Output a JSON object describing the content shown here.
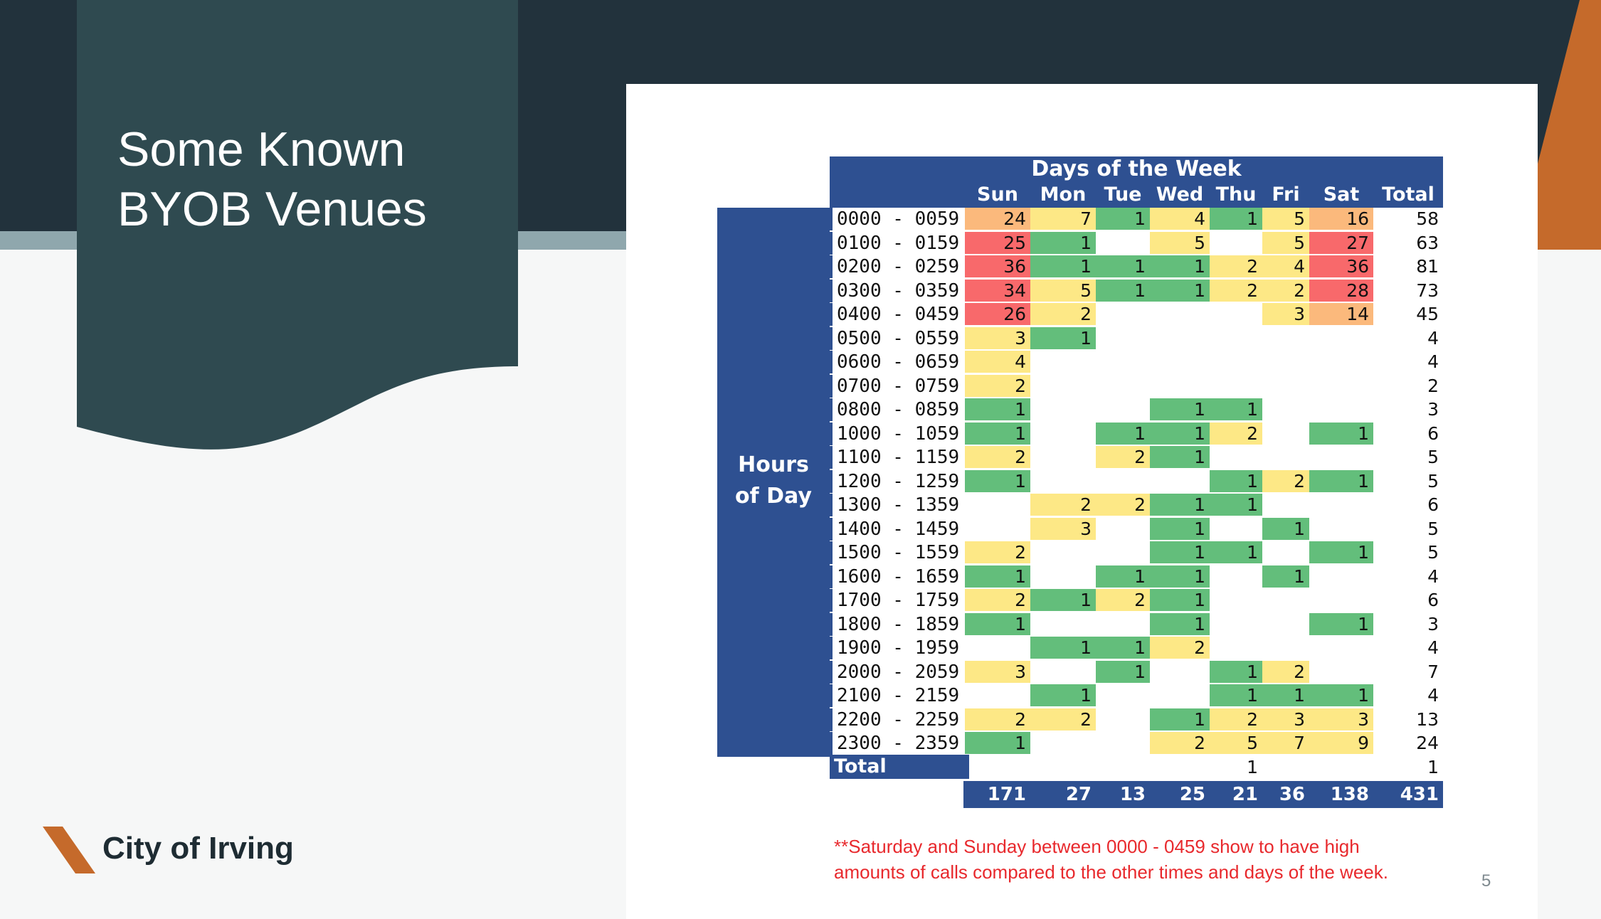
{
  "slide": {
    "title": "Some Known BYOB Venues",
    "page_number": "5",
    "brand_name": "City of Irving",
    "footnote": "**Saturday and Sunday between 0000 - 0459 show to have high amounts of calls compared to the other times and days of the week."
  },
  "colors": {
    "dark_band": "#22323c",
    "title_card": "#2f4a50",
    "accent_orange": "#c56a2b",
    "table_blue": "#2e5091",
    "footnote_red": "#e8292d"
  },
  "table": {
    "header_title": "Days of the Week",
    "side_label_line1": "Hours",
    "side_label_line2": "of Day",
    "columns": [
      "Sun",
      "Mon",
      "Tue",
      "Wed",
      "Thu",
      "Fri",
      "Sat",
      "Total"
    ],
    "rows": [
      {
        "label": "0000 - 0059",
        "cells": [
          "24",
          "7",
          "1",
          "4",
          "1",
          "5",
          "16"
        ],
        "total": "58"
      },
      {
        "label": "0100 - 0159",
        "cells": [
          "25",
          "1",
          "",
          "5",
          "",
          "5",
          "27"
        ],
        "total": "63"
      },
      {
        "label": "0200 - 0259",
        "cells": [
          "36",
          "1",
          "1",
          "1",
          "2",
          "4",
          "36"
        ],
        "total": "81"
      },
      {
        "label": "0300 - 0359",
        "cells": [
          "34",
          "5",
          "1",
          "1",
          "2",
          "2",
          "28"
        ],
        "total": "73"
      },
      {
        "label": "0400 - 0459",
        "cells": [
          "26",
          "2",
          "",
          "",
          "",
          "3",
          "14"
        ],
        "total": "45"
      },
      {
        "label": "0500 - 0559",
        "cells": [
          "3",
          "1",
          "",
          "",
          "",
          "",
          ""
        ],
        "total": "4"
      },
      {
        "label": "0600 - 0659",
        "cells": [
          "4",
          "",
          "",
          "",
          "",
          "",
          ""
        ],
        "total": "4"
      },
      {
        "label": "0700 - 0759",
        "cells": [
          "2",
          "",
          "",
          "",
          "",
          "",
          ""
        ],
        "total": "2"
      },
      {
        "label": "0800 - 0859",
        "cells": [
          "1",
          "",
          "",
          "1",
          "1",
          "",
          ""
        ],
        "total": "3"
      },
      {
        "label": "1000 - 1059",
        "cells": [
          "1",
          "",
          "1",
          "1",
          "2",
          "",
          "1"
        ],
        "total": "6"
      },
      {
        "label": "1100 - 1159",
        "cells": [
          "2",
          "",
          "2",
          "1",
          "",
          "",
          ""
        ],
        "total": "5"
      },
      {
        "label": "1200 - 1259",
        "cells": [
          "1",
          "",
          "",
          "",
          "1",
          "2",
          "1"
        ],
        "total": "5"
      },
      {
        "label": "1300 - 1359",
        "cells": [
          "",
          "2",
          "2",
          "1",
          "1",
          "",
          ""
        ],
        "total": "6"
      },
      {
        "label": "1400 - 1459",
        "cells": [
          "",
          "3",
          "",
          "1",
          "",
          "1",
          ""
        ],
        "total": "5"
      },
      {
        "label": "1500 - 1559",
        "cells": [
          "2",
          "",
          "",
          "1",
          "1",
          "",
          "1"
        ],
        "total": "5"
      },
      {
        "label": "1600 - 1659",
        "cells": [
          "1",
          "",
          "1",
          "1",
          "",
          "1",
          ""
        ],
        "total": "4"
      },
      {
        "label": "1700 - 1759",
        "cells": [
          "2",
          "1",
          "2",
          "1",
          "",
          "",
          ""
        ],
        "total": "6"
      },
      {
        "label": "1800 - 1859",
        "cells": [
          "1",
          "",
          "",
          "1",
          "",
          "",
          "1"
        ],
        "total": "3"
      },
      {
        "label": "1900 - 1959",
        "cells": [
          "",
          "1",
          "1",
          "2",
          "",
          "",
          ""
        ],
        "total": "4"
      },
      {
        "label": "2000 - 2059",
        "cells": [
          "3",
          "",
          "1",
          "",
          "1",
          "2",
          ""
        ],
        "total": "7"
      },
      {
        "label": "2100 - 2159",
        "cells": [
          "",
          "1",
          "",
          "",
          "1",
          "1",
          "1"
        ],
        "total": "4"
      },
      {
        "label": "2200 - 2259",
        "cells": [
          "2",
          "2",
          "",
          "1",
          "2",
          "3",
          "3"
        ],
        "total": "13"
      },
      {
        "label": "2300 - 2359",
        "cells": [
          "1",
          "",
          "",
          "2",
          "5",
          "7",
          "9"
        ],
        "total": "24"
      },
      {
        "label": "Total",
        "cells": [
          "",
          "",
          "",
          "",
          "1",
          "",
          ""
        ],
        "total": "1"
      }
    ],
    "grand_totals": [
      "171",
      "27",
      "13",
      "25",
      "21",
      "36",
      "138",
      "431"
    ]
  }
}
